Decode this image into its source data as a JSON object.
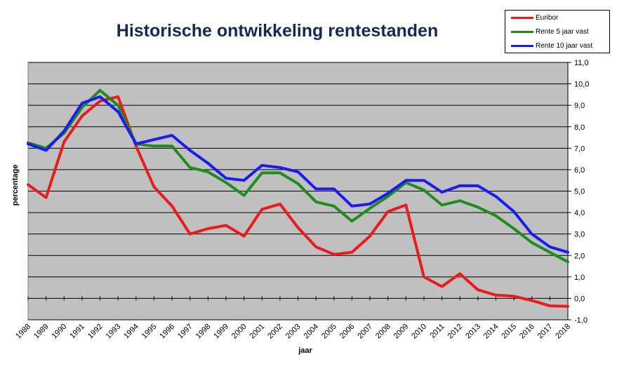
{
  "chart_data": {
    "type": "line",
    "title": "Historische ontwikkeling rentestanden",
    "xlabel": "jaar",
    "ylabel": "percentage",
    "ylim": [
      -1.0,
      11.0
    ],
    "ytick_step": 1.0,
    "ytick_labels": [
      "-1,0",
      "0,0",
      "1,0",
      "2,0",
      "3,0",
      "4,0",
      "5,0",
      "6,0",
      "7,0",
      "8,0",
      "9,0",
      "10,0",
      "11,0"
    ],
    "grid": true,
    "legend_position": "top-right",
    "categories": [
      "1988",
      "1989",
      "1990",
      "1991",
      "1992",
      "1993",
      "1994",
      "1995",
      "1996",
      "1997",
      "1998",
      "1999",
      "2000",
      "2001",
      "2002",
      "2003",
      "2004",
      "2005",
      "2006",
      "2007",
      "2008",
      "2009",
      "2010",
      "2011",
      "2012",
      "2013",
      "2014",
      "2015",
      "2016",
      "2017",
      "2018"
    ],
    "series": [
      {
        "name": "Euribor",
        "color": "#e81c1c",
        "values": [
          5.3,
          4.7,
          7.3,
          8.5,
          9.2,
          9.4,
          7.1,
          5.2,
          4.3,
          3.0,
          3.25,
          3.4,
          2.9,
          4.15,
          4.4,
          3.3,
          2.4,
          2.05,
          2.15,
          2.9,
          4.05,
          4.35,
          1.0,
          0.55,
          1.15,
          0.4,
          0.15,
          0.1,
          -0.1,
          -0.35,
          -0.37
        ]
      },
      {
        "name": "Rente 5 jaar vast",
        "color": "#1e8c1e",
        "values": [
          7.25,
          7.0,
          7.7,
          8.9,
          9.7,
          9.0,
          7.2,
          7.1,
          7.1,
          6.1,
          5.9,
          5.4,
          4.8,
          5.85,
          5.85,
          5.35,
          4.5,
          4.3,
          3.6,
          4.2,
          4.75,
          5.4,
          5.05,
          4.35,
          4.55,
          4.25,
          3.85,
          3.25,
          2.6,
          2.15,
          1.7
        ]
      },
      {
        "name": "Rente 10 jaar vast",
        "color": "#1c1cf0",
        "values": [
          7.2,
          6.9,
          7.8,
          9.1,
          9.4,
          8.7,
          7.2,
          7.4,
          7.6,
          6.9,
          6.3,
          5.6,
          5.5,
          6.2,
          6.1,
          5.9,
          5.1,
          5.1,
          4.3,
          4.4,
          4.9,
          5.5,
          5.5,
          4.95,
          5.25,
          5.25,
          4.75,
          4.05,
          3.0,
          2.4,
          2.15
        ]
      }
    ]
  }
}
